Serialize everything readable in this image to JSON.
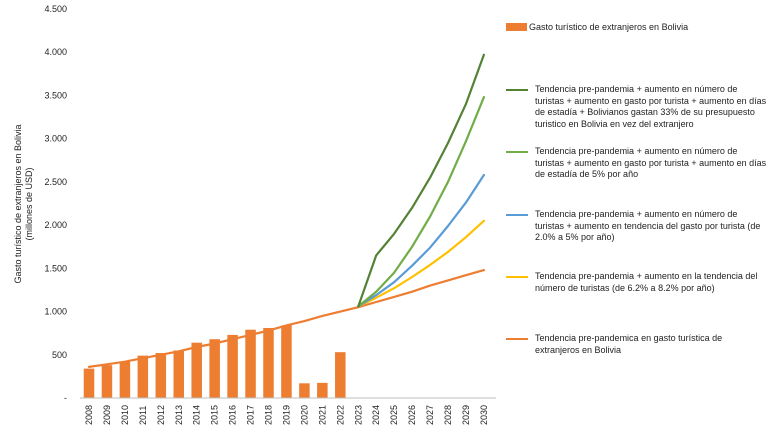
{
  "chart_data": {
    "type": "bar+line",
    "ylabel": [
      "Gasto turístico de extranjeros en Bolivia",
      "(millones de USD)"
    ],
    "ylim": [
      0,
      4500
    ],
    "yticks": [
      "-",
      "500",
      "1.000",
      "1.500",
      "2.000",
      "2.500",
      "3.000",
      "3.500",
      "4.000",
      "4.500"
    ],
    "ytick_values": [
      0,
      500,
      1000,
      1500,
      2000,
      2500,
      3000,
      3500,
      4000,
      4500
    ],
    "categories": [
      "2008",
      "2009",
      "2010",
      "2011",
      "2012",
      "2013",
      "2014",
      "2015",
      "2016",
      "2017",
      "2018",
      "2019",
      "2020",
      "2021",
      "2022",
      "2023",
      "2024",
      "2025",
      "2026",
      "2027",
      "2028",
      "2029",
      "2030"
    ],
    "bars": {
      "name": "Gasto turístico de extranjeros en Bolivia",
      "color": "#ED7D31",
      "values": [
        340,
        380,
        420,
        490,
        520,
        550,
        640,
        680,
        730,
        790,
        810,
        840,
        170,
        175,
        530,
        null,
        null,
        null,
        null,
        null,
        null,
        null,
        null
      ]
    },
    "series": [
      {
        "name": "Tendencia pre-pandemia + aumento en número de turistas + aumento en gasto por turista + aumento en días de estadía + Bolivianos gastan 33% de su presupuesto turistico en Bolivia en vez del extranjero",
        "color": "#548235",
        "values": [
          null,
          null,
          null,
          null,
          null,
          null,
          null,
          null,
          null,
          null,
          null,
          null,
          null,
          null,
          null,
          1060,
          1650,
          1900,
          2200,
          2550,
          2950,
          3400,
          3970
        ]
      },
      {
        "name": "Tendencia pre-pandemia + aumento en número de turistas + aumento en gasto por turista + aumento en días de estadía de 5% por año",
        "color": "#70AD47",
        "values": [
          null,
          null,
          null,
          null,
          null,
          null,
          null,
          null,
          null,
          null,
          null,
          null,
          null,
          null,
          null,
          1060,
          1230,
          1450,
          1750,
          2100,
          2500,
          2970,
          3480
        ]
      },
      {
        "name": "Tendencia pre-pandemia + aumento en número de turistas + aumento en tendencia del gasto por turista (de 2.0% a 5% por año)",
        "color": "#5B9BD5",
        "values": [
          null,
          null,
          null,
          null,
          null,
          null,
          null,
          null,
          null,
          null,
          null,
          null,
          null,
          null,
          null,
          1060,
          1190,
          1340,
          1530,
          1740,
          1990,
          2260,
          2580
        ]
      },
      {
        "name": "Tendencia pre-pandemia + aumento en la tendencia del número de turistas (de 6.2% a 8.2% por año)",
        "color": "#FFC000",
        "values": [
          null,
          null,
          null,
          null,
          null,
          null,
          null,
          null,
          null,
          null,
          null,
          null,
          null,
          null,
          null,
          1060,
          1160,
          1270,
          1400,
          1540,
          1690,
          1860,
          2050
        ]
      },
      {
        "name": "Tendencia pre-pandemica en gasto turística de extranjeros en Bolivia",
        "color": "#ED7D31",
        "values": [
          360,
          390,
          420,
          460,
          500,
          540,
          590,
          630,
          680,
          730,
          780,
          840,
          890,
          950,
          1000,
          1050,
          1110,
          1170,
          1230,
          1300,
          1360,
          1420,
          1480
        ]
      }
    ],
    "grid": false,
    "legend": "right"
  }
}
